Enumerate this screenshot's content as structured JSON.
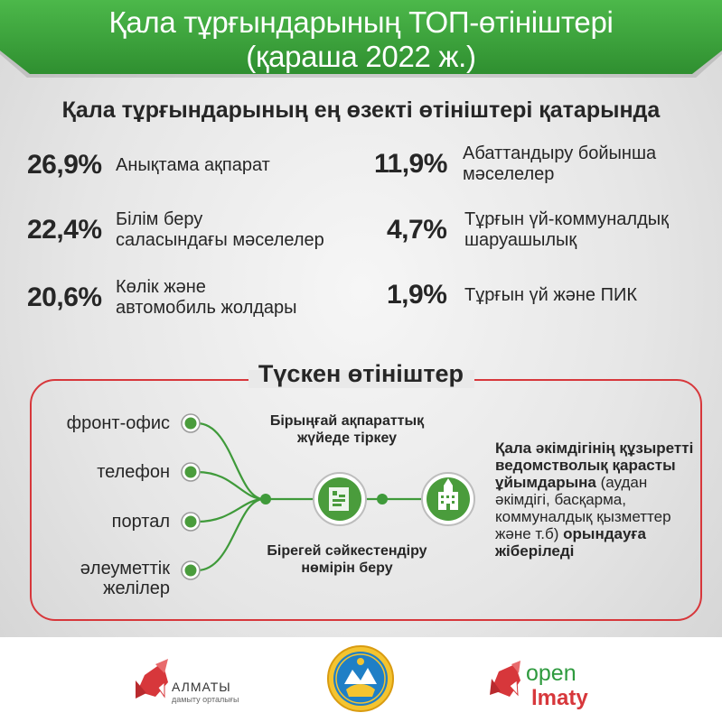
{
  "header": {
    "title_line1": "Қала тұрғындарының ТОП-өтініштері",
    "title_line2": "(қараша 2022 ж.)"
  },
  "subtitle": "Қала тұрғындарының ең өзекті өтініштері қатарында",
  "stats": [
    {
      "percent": "26,9%",
      "label": "Анықтама ақпарат"
    },
    {
      "percent": "22,4%",
      "label": "Білім беру\nсаласындағы мәселелер"
    },
    {
      "percent": "20,6%",
      "label": "Көлік және\nавтомобиль жолдары"
    },
    {
      "percent": "11,9%",
      "label": "Абаттандыру бойынша\nмәселелер"
    },
    {
      "percent": "4,7%",
      "label": "Тұрғын үй-коммуналдық\nшаруашылық"
    },
    {
      "percent": "1,9%",
      "label": "Тұрғын үй және ПИК"
    }
  ],
  "incoming": {
    "title": "Түскен өтініштер",
    "sources": [
      "фронт-офис",
      "телефон",
      "портал",
      "әлеуметтік\nжелілер"
    ],
    "register_note": "Бірыңғай ақпараттық\nжүйеде тіркеу",
    "id_note": "Бірегей сәйкестендіру\nнөмірін беру",
    "dest_bold1": "Қала әкімдігінің құзыретті ведомстволық қарасты ұйымдарына",
    "dest_normal": "(аудан әкімдігі, басқарма, коммуналдық қызметтер және т.б)",
    "dest_bold2": "орындауға жіберіледі"
  },
  "footer": {
    "almaty_logo_text": "АЛМАТЫ",
    "almaty_logo_sub": "дамыту орталығы",
    "open_logo_top": "open",
    "open_logo_bottom": "lmaty"
  },
  "colors": {
    "banner_green": "#3aa43a",
    "accent_red": "#d7373b",
    "node_green": "#4a9c3c"
  }
}
